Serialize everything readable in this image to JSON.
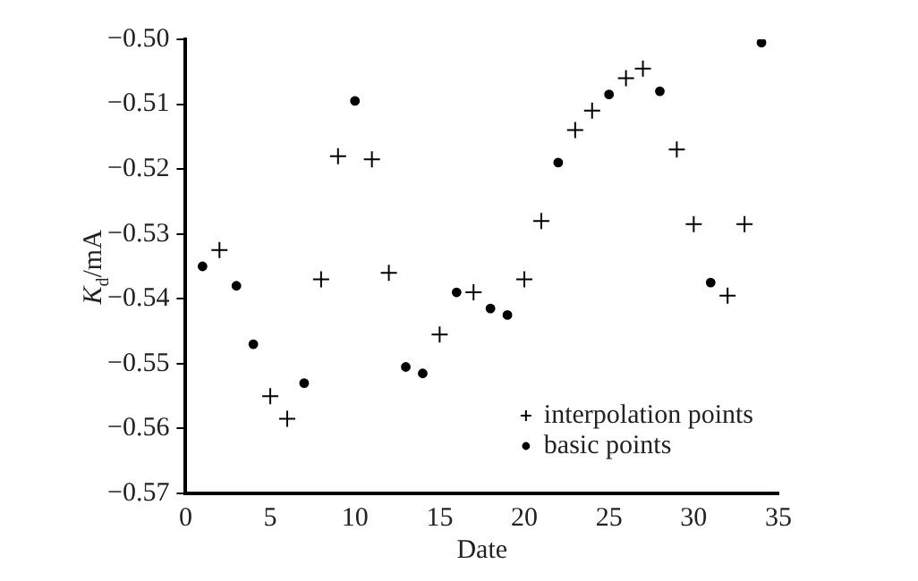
{
  "chart_data": {
    "type": "scatter",
    "xlabel": "Date",
    "ylabel": "K$_{d}$/mA",
    "xlim": [
      0,
      35
    ],
    "xticks": [
      0,
      5,
      10,
      15,
      20,
      25,
      30,
      35
    ],
    "ylim": [
      -0.57,
      -0.5
    ],
    "yticks": [
      {
        "value": -0.57,
        "label": "−0.57"
      },
      {
        "value": -0.56,
        "label": "−0.56"
      },
      {
        "value": -0.55,
        "label": "−0.55"
      },
      {
        "value": -0.54,
        "label": "−0.54"
      },
      {
        "value": -0.53,
        "label": "−0.53"
      },
      {
        "value": -0.52,
        "label": "−0.52"
      },
      {
        "value": -0.51,
        "label": "−0.51"
      },
      {
        "value": -0.5,
        "label": "−0.50"
      }
    ],
    "grid": false,
    "legend": "bottom right",
    "series": [
      {
        "name": "interpolation points",
        "color": "#000000",
        "marker": "cross",
        "x": [
          2,
          5,
          6,
          8,
          9,
          11,
          12,
          15,
          17,
          20,
          21,
          23,
          24,
          26,
          27,
          29,
          30,
          32,
          33
        ],
        "values": [
          -0.5325,
          -0.555,
          -0.5585,
          -0.537,
          -0.518,
          -0.5185,
          -0.536,
          -0.5455,
          -0.539,
          -0.537,
          -0.528,
          -0.514,
          -0.511,
          -0.506,
          -0.5045,
          -0.517,
          -0.5285,
          -0.5395,
          -0.5285
        ]
      },
      {
        "name": "basic points",
        "color": "#000000",
        "marker": "circle",
        "x": [
          1,
          3,
          4,
          7,
          10,
          13,
          14,
          16,
          18,
          19,
          22,
          25,
          28,
          31,
          34
        ],
        "values": [
          -0.535,
          -0.538,
          -0.547,
          -0.553,
          -0.5095,
          -0.5505,
          -0.5515,
          -0.539,
          -0.5415,
          -0.5425,
          -0.519,
          -0.5085,
          -0.508,
          -0.5375,
          -0.5005
        ]
      }
    ]
  }
}
